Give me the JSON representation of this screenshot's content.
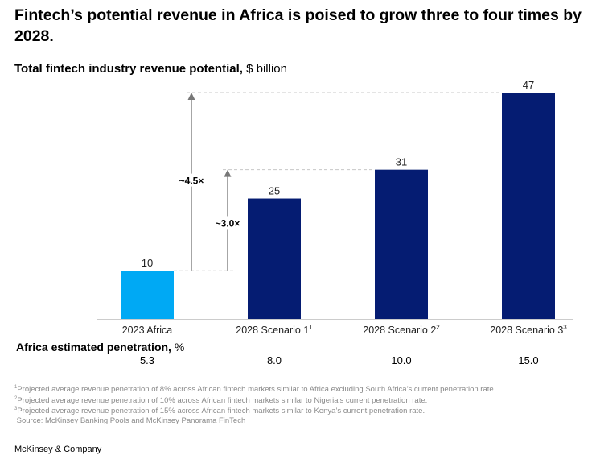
{
  "title": "Fintech’s potential revenue in Africa is poised to grow three to four times by 2028.",
  "subtitle_bold": "Total fintech industry revenue potential,",
  "subtitle_unit": "$ billion",
  "chart_data": {
    "type": "bar",
    "categories": [
      "2023 Africa",
      "2028 Scenario 1",
      "2028 Scenario 2",
      "2028 Scenario 3"
    ],
    "category_superscripts": [
      "",
      "1",
      "2",
      "3"
    ],
    "values": [
      10,
      25,
      31,
      47
    ],
    "data_labels": [
      "10",
      "25",
      "31",
      "47"
    ],
    "colors": [
      "#00a9f4",
      "#051c72",
      "#051c72",
      "#051c72"
    ],
    "ylim": [
      0,
      47
    ],
    "grid": false,
    "annotations": [
      {
        "label": "~4.5×",
        "from": 10,
        "to": 47
      },
      {
        "label": "~3.0×",
        "from": 10,
        "to": 31
      }
    ]
  },
  "penetration": {
    "label_bold": "Africa estimated penetration,",
    "label_unit": "%",
    "values": [
      "5.3",
      "8.0",
      "10.0",
      "15.0"
    ]
  },
  "footnotes": [
    {
      "sup": "1",
      "text": "Projected average revenue penetration of 8% across African fintech markets similar to Africa excluding South Africa’s current penetration rate."
    },
    {
      "sup": "2",
      "text": "Projected average revenue penetration of 10% across African fintech markets similar to Nigeria’s current penetration rate."
    },
    {
      "sup": "3",
      "text": "Projected average revenue penetration of 15% across African fintech markets similar to Kenya’s current penetration rate."
    },
    {
      "sup": "",
      "text": "Source: McKinsey Banking Pools and McKinsey Panorama FinTech"
    }
  ],
  "brand": "McKinsey & Company"
}
